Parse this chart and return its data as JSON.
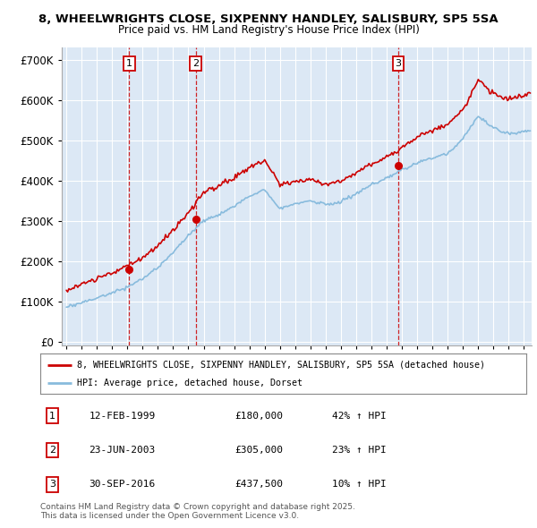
{
  "title_line1": "8, WHEELWRIGHTS CLOSE, SIXPENNY HANDLEY, SALISBURY, SP5 5SA",
  "title_line2": "Price paid vs. HM Land Registry's House Price Index (HPI)",
  "background_color": "#ffffff",
  "plot_bg_color": "#dce8f5",
  "grid_color": "#ffffff",
  "sale_color": "#cc0000",
  "hpi_color": "#88bbdd",
  "sale_label": "8, WHEELWRIGHTS CLOSE, SIXPENNY HANDLEY, SALISBURY, SP5 5SA (detached house)",
  "hpi_label": "HPI: Average price, detached house, Dorset",
  "sales": [
    {
      "num": 1,
      "year": 1999.12,
      "price": 180000,
      "label": "12-FEB-1999",
      "pct": "42%"
    },
    {
      "num": 2,
      "year": 2003.48,
      "price": 305000,
      "label": "23-JUN-2003",
      "pct": "23%"
    },
    {
      "num": 3,
      "year": 2016.75,
      "price": 437500,
      "label": "30-SEP-2016",
      "pct": "10%"
    }
  ],
  "footer": "Contains HM Land Registry data © Crown copyright and database right 2025.\nThis data is licensed under the Open Government Licence v3.0.",
  "yticks": [
    0,
    100000,
    200000,
    300000,
    400000,
    500000,
    600000,
    700000
  ],
  "ylim": [
    -10000,
    730000
  ],
  "xlim": [
    1994.7,
    2025.5
  ]
}
